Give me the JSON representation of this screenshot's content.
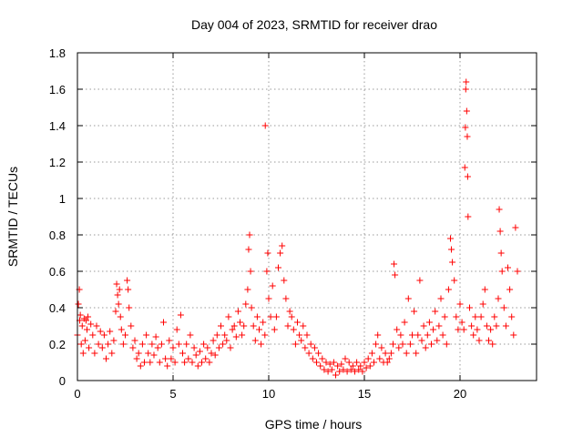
{
  "chart_data": {
    "type": "scatter",
    "title": "Day 004 of 2023, SRMTID for receiver drao",
    "xlabel": "GPS time / hours",
    "ylabel": "SRMTID / TECUs",
    "xlim": [
      0,
      24
    ],
    "ylim": [
      0,
      1.8
    ],
    "xticks": [
      0,
      5,
      10,
      15,
      20
    ],
    "xtick_labels": [
      "0",
      "5",
      "10",
      "15",
      "20"
    ],
    "yticks": [
      0,
      0.2,
      0.4,
      0.6,
      0.8,
      1.0,
      1.2,
      1.4,
      1.6,
      1.8
    ],
    "ytick_labels": [
      "0",
      "0.2",
      "0.4",
      "0.6",
      "0.8",
      "1",
      "1.2",
      "1.4",
      "1.6",
      "1.8"
    ],
    "grid": true,
    "marker": "+",
    "color": "#ff0000",
    "series": [
      {
        "name": "SRMTID",
        "points": [
          [
            0.0,
            0.25
          ],
          [
            0.05,
            0.42
          ],
          [
            0.1,
            0.5
          ],
          [
            0.12,
            0.33
          ],
          [
            0.15,
            0.36
          ],
          [
            0.2,
            0.2
          ],
          [
            0.25,
            0.3
          ],
          [
            0.3,
            0.15
          ],
          [
            0.35,
            0.34
          ],
          [
            0.4,
            0.22
          ],
          [
            0.45,
            0.33
          ],
          [
            0.5,
            0.28
          ],
          [
            0.55,
            0.35
          ],
          [
            0.6,
            0.18
          ],
          [
            0.7,
            0.31
          ],
          [
            0.8,
            0.25
          ],
          [
            0.9,
            0.15
          ],
          [
            1.0,
            0.3
          ],
          [
            1.1,
            0.2
          ],
          [
            1.2,
            0.27
          ],
          [
            1.3,
            0.18
          ],
          [
            1.4,
            0.25
          ],
          [
            1.5,
            0.12
          ],
          [
            1.6,
            0.2
          ],
          [
            1.7,
            0.27
          ],
          [
            1.8,
            0.15
          ],
          [
            1.9,
            0.22
          ],
          [
            2.0,
            0.38
          ],
          [
            2.05,
            0.53
          ],
          [
            2.1,
            0.47
          ],
          [
            2.15,
            0.42
          ],
          [
            2.2,
            0.5
          ],
          [
            2.25,
            0.35
          ],
          [
            2.3,
            0.28
          ],
          [
            2.4,
            0.2
          ],
          [
            2.5,
            0.25
          ],
          [
            2.6,
            0.55
          ],
          [
            2.65,
            0.5
          ],
          [
            2.7,
            0.4
          ],
          [
            2.8,
            0.3
          ],
          [
            2.9,
            0.18
          ],
          [
            3.0,
            0.22
          ],
          [
            3.1,
            0.12
          ],
          [
            3.2,
            0.15
          ],
          [
            3.3,
            0.08
          ],
          [
            3.4,
            0.2
          ],
          [
            3.5,
            0.1
          ],
          [
            3.6,
            0.25
          ],
          [
            3.7,
            0.15
          ],
          [
            3.8,
            0.1
          ],
          [
            3.9,
            0.2
          ],
          [
            4.0,
            0.14
          ],
          [
            4.1,
            0.24
          ],
          [
            4.2,
            0.18
          ],
          [
            4.3,
            0.1
          ],
          [
            4.4,
            0.2
          ],
          [
            4.5,
            0.32
          ],
          [
            4.6,
            0.12
          ],
          [
            4.7,
            0.08
          ],
          [
            4.8,
            0.22
          ],
          [
            4.9,
            0.12
          ],
          [
            5.0,
            0.18
          ],
          [
            5.1,
            0.1
          ],
          [
            5.2,
            0.28
          ],
          [
            5.3,
            0.2
          ],
          [
            5.4,
            0.36
          ],
          [
            5.5,
            0.15
          ],
          [
            5.6,
            0.1
          ],
          [
            5.7,
            0.2
          ],
          [
            5.8,
            0.12
          ],
          [
            5.9,
            0.25
          ],
          [
            6.0,
            0.1
          ],
          [
            6.1,
            0.18
          ],
          [
            6.2,
            0.14
          ],
          [
            6.3,
            0.08
          ],
          [
            6.4,
            0.16
          ],
          [
            6.5,
            0.1
          ],
          [
            6.6,
            0.2
          ],
          [
            6.7,
            0.12
          ],
          [
            6.8,
            0.18
          ],
          [
            6.9,
            0.1
          ],
          [
            7.0,
            0.15
          ],
          [
            7.1,
            0.22
          ],
          [
            7.2,
            0.14
          ],
          [
            7.3,
            0.25
          ],
          [
            7.4,
            0.18
          ],
          [
            7.5,
            0.3
          ],
          [
            7.6,
            0.2
          ],
          [
            7.7,
            0.25
          ],
          [
            7.8,
            0.22
          ],
          [
            7.9,
            0.35
          ],
          [
            8.0,
            0.18
          ],
          [
            8.1,
            0.28
          ],
          [
            8.2,
            0.3
          ],
          [
            8.3,
            0.24
          ],
          [
            8.4,
            0.38
          ],
          [
            8.5,
            0.32
          ],
          [
            8.6,
            0.25
          ],
          [
            8.7,
            0.3
          ],
          [
            8.8,
            0.42
          ],
          [
            8.9,
            0.5
          ],
          [
            8.95,
            0.72
          ],
          [
            9.0,
            0.8
          ],
          [
            9.05,
            0.6
          ],
          [
            9.1,
            0.4
          ],
          [
            9.2,
            0.3
          ],
          [
            9.3,
            0.22
          ],
          [
            9.4,
            0.35
          ],
          [
            9.5,
            0.28
          ],
          [
            9.6,
            0.2
          ],
          [
            9.7,
            0.32
          ],
          [
            9.8,
            0.25
          ],
          [
            9.82,
            1.4
          ],
          [
            9.9,
            0.6
          ],
          [
            9.95,
            0.7
          ],
          [
            10.0,
            0.45
          ],
          [
            10.1,
            0.35
          ],
          [
            10.2,
            0.52
          ],
          [
            10.3,
            0.28
          ],
          [
            10.4,
            0.35
          ],
          [
            10.5,
            0.62
          ],
          [
            10.6,
            0.7
          ],
          [
            10.7,
            0.74
          ],
          [
            10.8,
            0.55
          ],
          [
            10.9,
            0.45
          ],
          [
            11.0,
            0.3
          ],
          [
            11.1,
            0.38
          ],
          [
            11.2,
            0.35
          ],
          [
            11.3,
            0.28
          ],
          [
            11.4,
            0.2
          ],
          [
            11.5,
            0.32
          ],
          [
            11.6,
            0.25
          ],
          [
            11.7,
            0.22
          ],
          [
            11.8,
            0.3
          ],
          [
            11.9,
            0.18
          ],
          [
            12.0,
            0.25
          ],
          [
            12.1,
            0.15
          ],
          [
            12.2,
            0.2
          ],
          [
            12.3,
            0.12
          ],
          [
            12.4,
            0.18
          ],
          [
            12.5,
            0.1
          ],
          [
            12.6,
            0.15
          ],
          [
            12.7,
            0.08
          ],
          [
            12.8,
            0.12
          ],
          [
            12.9,
            0.06
          ],
          [
            13.0,
            0.1
          ],
          [
            13.1,
            0.05
          ],
          [
            13.2,
            0.09
          ],
          [
            13.3,
            0.06
          ],
          [
            13.4,
            0.1
          ],
          [
            13.5,
            0.03
          ],
          [
            13.6,
            0.08
          ],
          [
            13.7,
            0.05
          ],
          [
            13.8,
            0.09
          ],
          [
            13.9,
            0.06
          ],
          [
            14.0,
            0.12
          ],
          [
            14.1,
            0.05
          ],
          [
            14.2,
            0.1
          ],
          [
            14.3,
            0.06
          ],
          [
            14.4,
            0.08
          ],
          [
            14.5,
            0.05
          ],
          [
            14.6,
            0.1
          ],
          [
            14.7,
            0.06
          ],
          [
            14.8,
            0.08
          ],
          [
            14.9,
            0.05
          ],
          [
            15.0,
            0.1
          ],
          [
            15.1,
            0.07
          ],
          [
            15.2,
            0.12
          ],
          [
            15.3,
            0.08
          ],
          [
            15.4,
            0.15
          ],
          [
            15.5,
            0.1
          ],
          [
            15.6,
            0.2
          ],
          [
            15.7,
            0.25
          ],
          [
            15.8,
            0.12
          ],
          [
            15.9,
            0.18
          ],
          [
            16.0,
            0.1
          ],
          [
            16.1,
            0.15
          ],
          [
            16.2,
            0.1
          ],
          [
            16.3,
            0.12
          ],
          [
            16.4,
            0.15
          ],
          [
            16.5,
            0.2
          ],
          [
            16.55,
            0.64
          ],
          [
            16.6,
            0.58
          ],
          [
            16.7,
            0.28
          ],
          [
            16.8,
            0.18
          ],
          [
            16.9,
            0.25
          ],
          [
            17.0,
            0.2
          ],
          [
            17.1,
            0.32
          ],
          [
            17.2,
            0.15
          ],
          [
            17.3,
            0.45
          ],
          [
            17.4,
            0.2
          ],
          [
            17.5,
            0.25
          ],
          [
            17.6,
            0.38
          ],
          [
            17.7,
            0.15
          ],
          [
            17.8,
            0.25
          ],
          [
            17.9,
            0.55
          ],
          [
            18.0,
            0.22
          ],
          [
            18.1,
            0.3
          ],
          [
            18.2,
            0.18
          ],
          [
            18.3,
            0.25
          ],
          [
            18.4,
            0.32
          ],
          [
            18.5,
            0.2
          ],
          [
            18.6,
            0.28
          ],
          [
            18.7,
            0.38
          ],
          [
            18.8,
            0.22
          ],
          [
            18.9,
            0.3
          ],
          [
            19.0,
            0.45
          ],
          [
            19.1,
            0.25
          ],
          [
            19.2,
            0.35
          ],
          [
            19.3,
            0.2
          ],
          [
            19.4,
            0.5
          ],
          [
            19.5,
            0.78
          ],
          [
            19.55,
            0.72
          ],
          [
            19.6,
            0.65
          ],
          [
            19.7,
            0.55
          ],
          [
            19.8,
            0.35
          ],
          [
            19.9,
            0.28
          ],
          [
            20.0,
            0.42
          ],
          [
            20.1,
            0.32
          ],
          [
            20.2,
            0.28
          ],
          [
            20.25,
            1.17
          ],
          [
            20.28,
            1.39
          ],
          [
            20.3,
            1.6
          ],
          [
            20.32,
            1.64
          ],
          [
            20.35,
            1.48
          ],
          [
            20.38,
            1.34
          ],
          [
            20.4,
            1.12
          ],
          [
            20.42,
            0.9
          ],
          [
            20.5,
            0.4
          ],
          [
            20.6,
            0.3
          ],
          [
            20.7,
            0.25
          ],
          [
            20.8,
            0.35
          ],
          [
            20.9,
            0.28
          ],
          [
            21.0,
            0.22
          ],
          [
            21.1,
            0.35
          ],
          [
            21.2,
            0.42
          ],
          [
            21.3,
            0.5
          ],
          [
            21.4,
            0.3
          ],
          [
            21.5,
            0.22
          ],
          [
            21.6,
            0.28
          ],
          [
            21.7,
            0.2
          ],
          [
            21.8,
            0.35
          ],
          [
            21.9,
            0.3
          ],
          [
            22.0,
            0.45
          ],
          [
            22.05,
            0.94
          ],
          [
            22.1,
            0.82
          ],
          [
            22.15,
            0.7
          ],
          [
            22.2,
            0.6
          ],
          [
            22.3,
            0.4
          ],
          [
            22.4,
            0.3
          ],
          [
            22.5,
            0.62
          ],
          [
            22.6,
            0.5
          ],
          [
            22.7,
            0.35
          ],
          [
            22.8,
            0.25
          ],
          [
            22.9,
            0.84
          ],
          [
            23.0,
            0.6
          ]
        ]
      }
    ]
  }
}
